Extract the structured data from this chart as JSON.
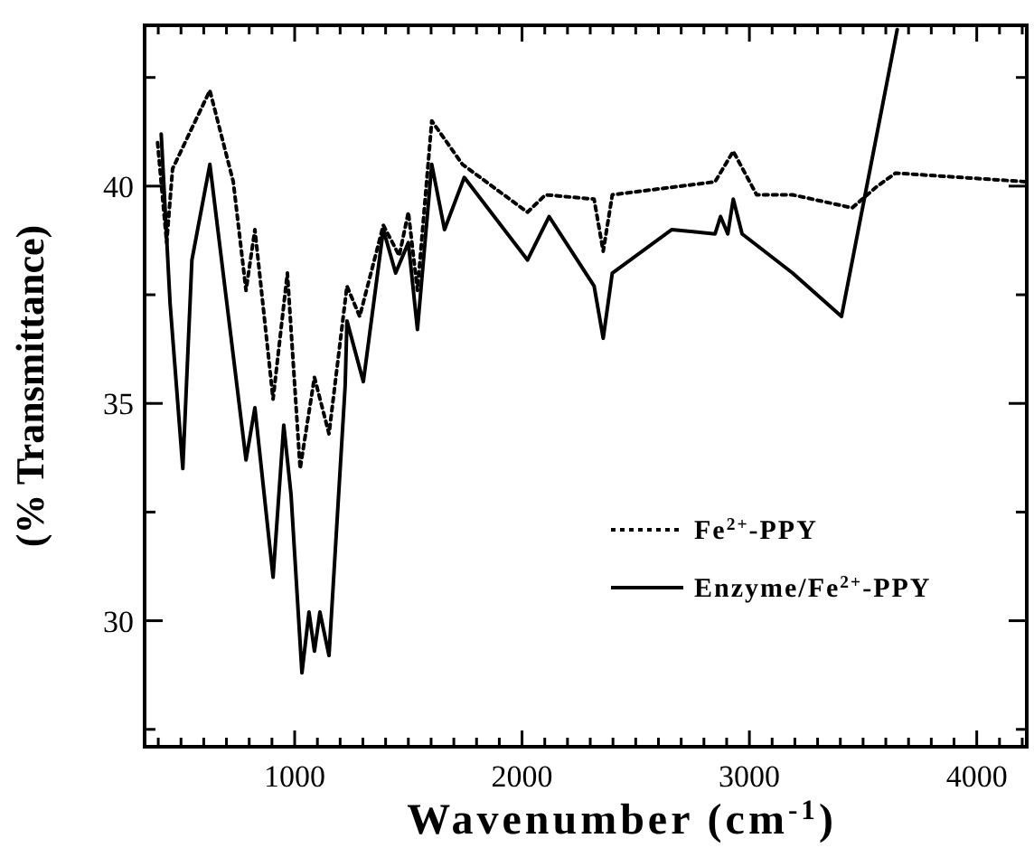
{
  "chart_data": {
    "type": "line",
    "xlabel": "Wavenumber (cm$^{-1}$)",
    "ylabel": "(% Transmittance)",
    "xlim": [
      340,
      4220
    ],
    "ylim": [
      27.1,
      43.7
    ],
    "xticks": [
      {
        "value": 400,
        "label": null
      },
      {
        "value": 500,
        "label": null
      },
      {
        "value": 600,
        "label": null
      },
      {
        "value": 700,
        "label": null
      },
      {
        "value": 800,
        "label": null
      },
      {
        "value": 900,
        "label": null
      },
      1000,
      {
        "value": 1100,
        "label": null
      },
      {
        "value": 1200,
        "label": null
      },
      {
        "value": 1300,
        "label": null
      },
      {
        "value": 1400,
        "label": null
      },
      {
        "value": 1500,
        "label": null
      },
      {
        "value": 1600,
        "label": null
      },
      {
        "value": 1700,
        "label": null
      },
      {
        "value": 1800,
        "label": null
      },
      {
        "value": 1900,
        "label": null
      },
      2000,
      {
        "value": 2100,
        "label": null
      },
      {
        "value": 2200,
        "label": null
      },
      {
        "value": 2300,
        "label": null
      },
      {
        "value": 2400,
        "label": null
      },
      {
        "value": 2500,
        "label": null
      },
      {
        "value": 2600,
        "label": null
      },
      {
        "value": 2700,
        "label": null
      },
      {
        "value": 2800,
        "label": null
      },
      {
        "value": 2900,
        "label": null
      },
      3000,
      {
        "value": 3100,
        "label": null
      },
      {
        "value": 3200,
        "label": null
      },
      {
        "value": 3300,
        "label": null
      },
      {
        "value": 3400,
        "label": null
      },
      {
        "value": 3500,
        "label": null
      },
      {
        "value": 3600,
        "label": null
      },
      {
        "value": 3700,
        "label": null
      },
      {
        "value": 3800,
        "label": null
      },
      {
        "value": 3900,
        "label": null
      },
      4000,
      {
        "value": 4100,
        "label": null
      },
      {
        "value": 4200,
        "label": null
      }
    ],
    "yticks": [
      {
        "value": 27.5,
        "label": null
      },
      30,
      {
        "value": 32.5,
        "label": null
      },
      35,
      {
        "value": 37.5,
        "label": null
      },
      40,
      {
        "value": 42.5,
        "label": null
      }
    ],
    "grid": false,
    "legend": "bottom right",
    "marker": "none",
    "series": [
      {
        "name": "Fe$^{2+}$-PPY",
        "color": "#000000",
        "line_style": "dotted",
        "x": [
          397,
          437,
          463,
          627,
          730,
          786,
          825,
          905,
          968,
          1024,
          1087,
          1151,
          1230,
          1286,
          1390,
          1460,
          1500,
          1540,
          1603,
          1738,
          2024,
          2103,
          2317,
          2357,
          2397,
          2849,
          2929,
          3032,
          3190,
          3452,
          3563,
          3643,
          4220
        ],
        "values": [
          41.0,
          38.7,
          40.4,
          42.2,
          40.1,
          37.6,
          39.0,
          35.1,
          38.0,
          33.5,
          35.6,
          34.3,
          37.7,
          37.0,
          39.1,
          38.4,
          39.4,
          37.6,
          41.5,
          40.5,
          39.4,
          39.8,
          39.7,
          38.5,
          39.8,
          40.1,
          40.8,
          39.8,
          39.8,
          39.5,
          40.0,
          40.3,
          40.1
        ]
      },
      {
        "name": "Enzyme/Fe$^{2+}$-PPY",
        "color": "#000000",
        "line_style": "solid",
        "x": [
          413,
          452,
          508,
          548,
          627,
          786,
          825,
          905,
          952,
          984,
          1032,
          1063,
          1087,
          1111,
          1151,
          1222,
          1230,
          1302,
          1390,
          1444,
          1500,
          1540,
          1603,
          1659,
          1746,
          2024,
          2119,
          2317,
          2357,
          2397,
          2659,
          2849,
          2873,
          2905,
          2929,
          2968,
          3190,
          3405,
          3650
        ],
        "values": [
          41.2,
          37.3,
          33.5,
          38.3,
          40.5,
          33.7,
          34.9,
          31.0,
          34.5,
          32.9,
          28.8,
          30.2,
          29.3,
          30.2,
          29.2,
          35.4,
          36.9,
          35.5,
          39.0,
          38.0,
          38.7,
          36.7,
          40.5,
          39.0,
          40.2,
          38.3,
          39.3,
          37.7,
          36.5,
          38.0,
          39.0,
          38.9,
          39.3,
          38.9,
          39.7,
          38.9,
          38.0,
          37.0,
          43.6
        ]
      }
    ]
  }
}
